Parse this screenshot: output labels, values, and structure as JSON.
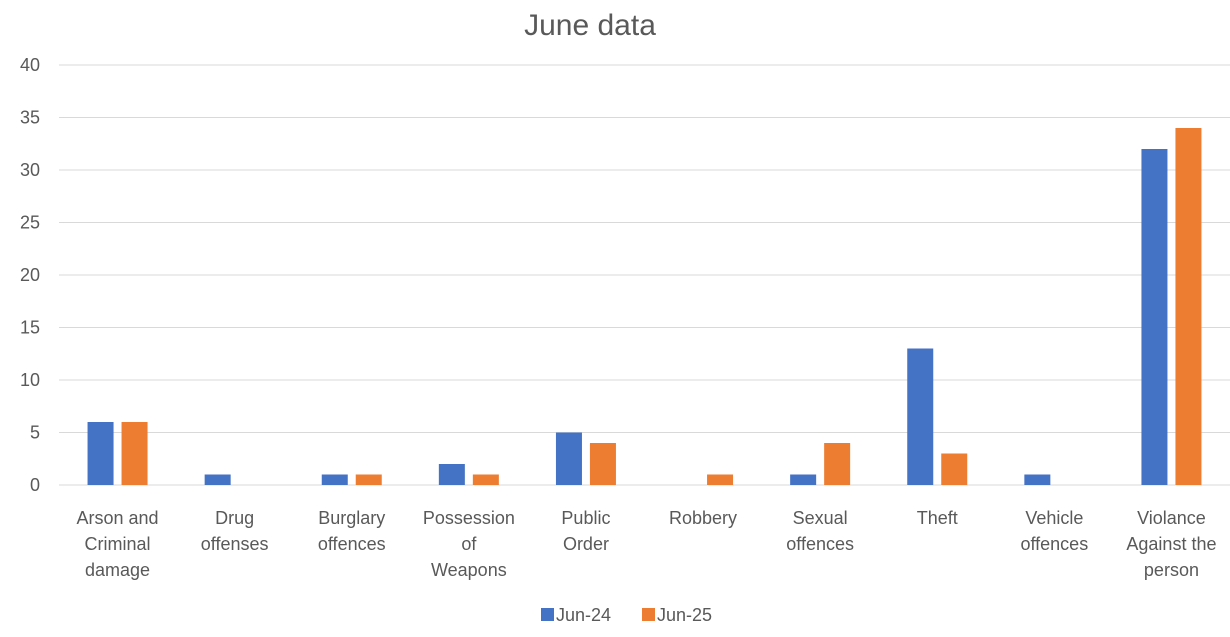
{
  "chart_data": {
    "type": "bar",
    "title": "June data",
    "xlabel": "",
    "ylabel": "",
    "ylim": [
      0,
      40
    ],
    "yticks": [
      0,
      5,
      10,
      15,
      20,
      25,
      30,
      35,
      40
    ],
    "grid": true,
    "legend_position": "bottom",
    "categories": [
      [
        "Arson and",
        "Criminal",
        "damage"
      ],
      [
        "Drug",
        "offenses"
      ],
      [
        "Burglary",
        "offences"
      ],
      [
        "Possession",
        "of",
        "Weapons"
      ],
      [
        "Public",
        "Order"
      ],
      [
        "Robbery"
      ],
      [
        "Sexual",
        "offences"
      ],
      [
        "Theft"
      ],
      [
        "Vehicle",
        "offences"
      ],
      [
        "Violance",
        "Against the",
        "person"
      ]
    ],
    "series": [
      {
        "name": "Jun-24",
        "color": "#4472C4",
        "values": [
          6,
          1,
          1,
          2,
          5,
          0,
          1,
          13,
          1,
          32
        ]
      },
      {
        "name": "Jun-25",
        "color": "#ED7D31",
        "values": [
          6,
          0,
          1,
          1,
          4,
          1,
          4,
          3,
          0,
          34
        ]
      }
    ]
  }
}
